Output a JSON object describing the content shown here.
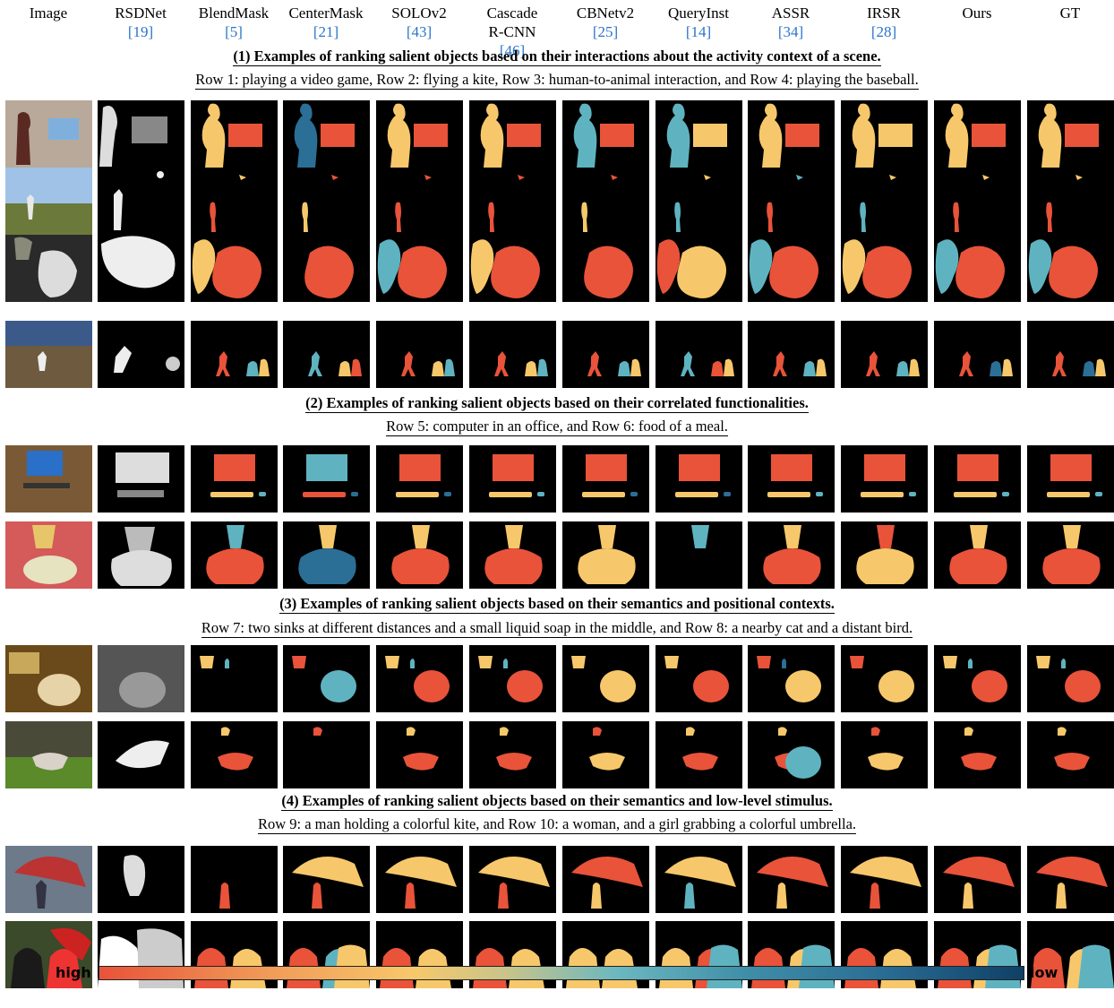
{
  "headers": [
    {
      "name": "Image",
      "ref": ""
    },
    {
      "name": "RSDNet",
      "ref": "[19]"
    },
    {
      "name": "BlendMask",
      "ref": "[5]"
    },
    {
      "name": "CenterMask",
      "ref": "[21]"
    },
    {
      "name": "SOLOv2",
      "ref": "[43]"
    },
    {
      "name": "Cascade\nR-CNN",
      "ref": "[46]"
    },
    {
      "name": "CBNetv2",
      "ref": "[25]"
    },
    {
      "name": "QueryInst",
      "ref": "[14]"
    },
    {
      "name": "ASSR",
      "ref": "[34]"
    },
    {
      "name": "IRSR",
      "ref": "[28]"
    },
    {
      "name": "Ours",
      "ref": ""
    },
    {
      "name": "GT",
      "ref": ""
    }
  ],
  "sections": [
    {
      "title": "(1) Examples of ranking salient objects based on their interactions about the activity context of a scene.",
      "subtitle": "Row 1: playing a video game, Row 2: flying a kite, Row 3: human-to-animal interaction, and Row 4: playing the baseball."
    },
    {
      "title": "(2) Examples of ranking salient objects based on their correlated functionalities.",
      "subtitle": "Row 5: computer in an office, and Row 6: food of a meal."
    },
    {
      "title": "(3) Examples of ranking salient objects based on their semantics and positional contexts.",
      "subtitle": "Row 7: two sinks at different distances and a small liquid soap in the middle, and Row 8: a nearby cat and a distant bird."
    },
    {
      "title": "(4) Examples of ranking salient objects based on their semantics and low-level stimulus.",
      "subtitle": "Row 9: a man holding a colorful kite, and Row 10: a woman, and a girl grabbing a colorful umbrella."
    }
  ],
  "colorbar": {
    "left_label": "high",
    "right_label": "low",
    "colors": [
      "#e8533a",
      "#f7c86b",
      "#6bb8c0",
      "#0f4066"
    ]
  },
  "palette": {
    "rank1": "#e8533a",
    "rank2": "#f7c86b",
    "rank3": "#5fb3c0",
    "rank4": "#2b6f96",
    "rank5": "#0f4066"
  }
}
